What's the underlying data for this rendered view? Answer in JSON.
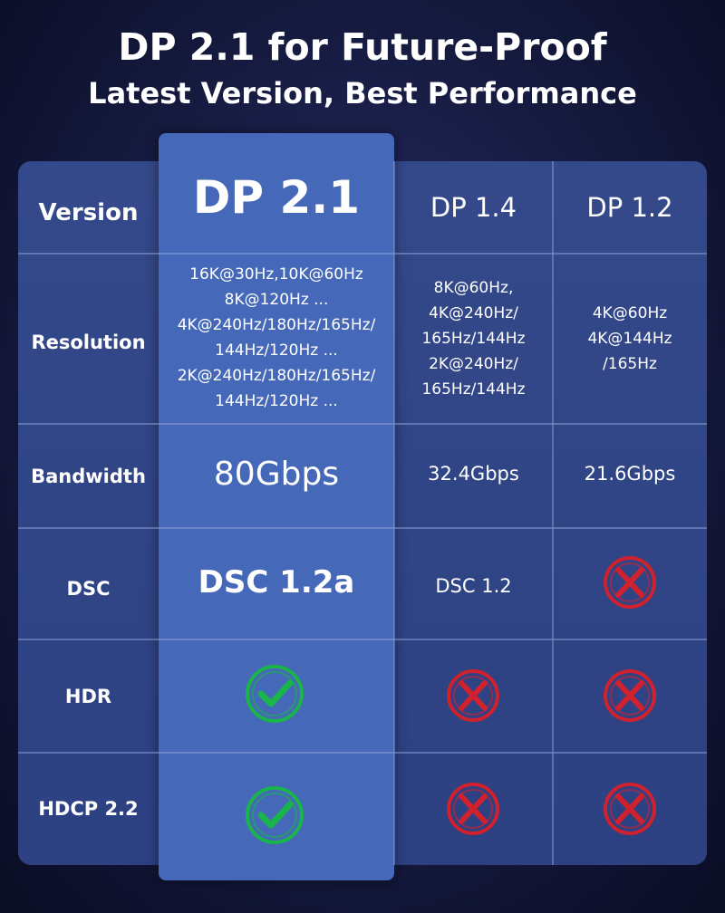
{
  "header": {
    "title": "DP 2.1 for Future-Proof",
    "subtitle": "Latest Version, Best Performance"
  },
  "table": {
    "columns": [
      "Version",
      "DP 2.1",
      "DP 1.4",
      "DP 1.2"
    ],
    "rows": [
      [
        "Resolution",
        [
          "16K@30Hz,10K@60Hz",
          "8K@120Hz ...",
          "4K@240Hz/180Hz/165Hz/",
          "144Hz/120Hz ...",
          "2K@240Hz/180Hz/165Hz/",
          "144Hz/120Hz ..."
        ],
        [
          "8K@60Hz,",
          "4K@240Hz/",
          "165Hz/144Hz",
          "2K@240Hz/",
          "165Hz/144Hz"
        ],
        [
          "4K@60Hz",
          "4K@144Hz",
          "/165Hz"
        ]
      ],
      [
        "Bandwidth",
        "80Gbps",
        "32.4Gbps",
        "21.6Gbps"
      ],
      [
        "DSC",
        "DSC 1.2a",
        "DSC 1.2"
      ],
      [
        "HDR"
      ],
      [
        "HDCP 2.2"
      ]
    ]
  }
}
